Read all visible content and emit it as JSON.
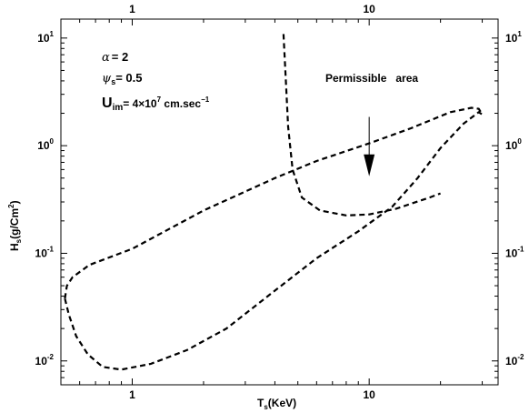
{
  "chart_data": {
    "type": "line",
    "xscale": "log",
    "yscale": "log",
    "xlim": [
      0.5,
      35
    ],
    "ylim": [
      0.006,
      15
    ],
    "grid": false,
    "xlabel": {
      "main": "T",
      "sub": "s",
      "rest": "(KeV)"
    },
    "ylabel": {
      "main": "H",
      "sub": "s",
      "rest": "(g/Cm",
      "sup": "2",
      "end": ")"
    },
    "x_ticks": [
      {
        "value": 1,
        "label": "1"
      },
      {
        "value": 10,
        "label": "10"
      }
    ],
    "y_ticks": [
      {
        "value": 0.01,
        "base": "10",
        "exp": "-2"
      },
      {
        "value": 0.1,
        "base": "10",
        "exp": "-1"
      },
      {
        "value": 1,
        "base": "10",
        "exp": "0"
      },
      {
        "value": 10,
        "base": "10",
        "exp": "1"
      }
    ],
    "params": {
      "alpha": {
        "symbol": "α",
        "text": "= 2"
      },
      "psi": {
        "symbol": "ψ",
        "sub": "s",
        "text": "= 0.5"
      },
      "u": {
        "symbol": "U",
        "sub": "im",
        "text": "= 4×10",
        "sup1": "7",
        "text2": " cm.sec",
        "sup2": "−1"
      }
    },
    "annotation": {
      "text": "Permissible   area",
      "arrow_from": [
        10.0,
        1.85
      ],
      "arrow_to": [
        10.0,
        0.52
      ]
    },
    "series": [
      {
        "style": "dashed",
        "points": [
          [
            0.52,
            0.038
          ],
          [
            0.54,
            0.027
          ],
          [
            0.58,
            0.017
          ],
          [
            0.65,
            0.0115
          ],
          [
            0.75,
            0.0088
          ],
          [
            0.9,
            0.0083
          ],
          [
            1.2,
            0.0094
          ],
          [
            1.7,
            0.0126
          ],
          [
            2.5,
            0.02
          ],
          [
            4.0,
            0.045
          ],
          [
            6.0,
            0.09
          ],
          [
            9.0,
            0.16
          ],
          [
            12.5,
            0.27
          ],
          [
            16.0,
            0.5
          ],
          [
            20.0,
            0.95
          ],
          [
            25.0,
            1.6
          ],
          [
            29.0,
            2.05
          ],
          [
            30.0,
            1.95
          ],
          [
            29.0,
            2.2
          ],
          [
            27.0,
            2.25
          ],
          [
            22.0,
            2.05
          ],
          [
            15.0,
            1.45
          ],
          [
            10.0,
            1.05
          ],
          [
            6.0,
            0.72
          ],
          [
            4.0,
            0.5
          ],
          [
            2.0,
            0.25
          ],
          [
            1.0,
            0.11
          ],
          [
            0.66,
            0.078
          ],
          [
            0.56,
            0.06
          ],
          [
            0.53,
            0.05
          ],
          [
            0.52,
            0.038
          ]
        ]
      },
      {
        "style": "dashed",
        "points": [
          [
            4.35,
            10.9
          ],
          [
            4.45,
            4.0
          ],
          [
            4.55,
            1.5
          ],
          [
            4.75,
            0.6
          ],
          [
            5.2,
            0.33
          ],
          [
            6.2,
            0.25
          ],
          [
            8.0,
            0.225
          ],
          [
            10.0,
            0.23
          ],
          [
            13.0,
            0.26
          ],
          [
            18.0,
            0.33
          ],
          [
            20.0,
            0.36
          ]
        ]
      }
    ]
  }
}
